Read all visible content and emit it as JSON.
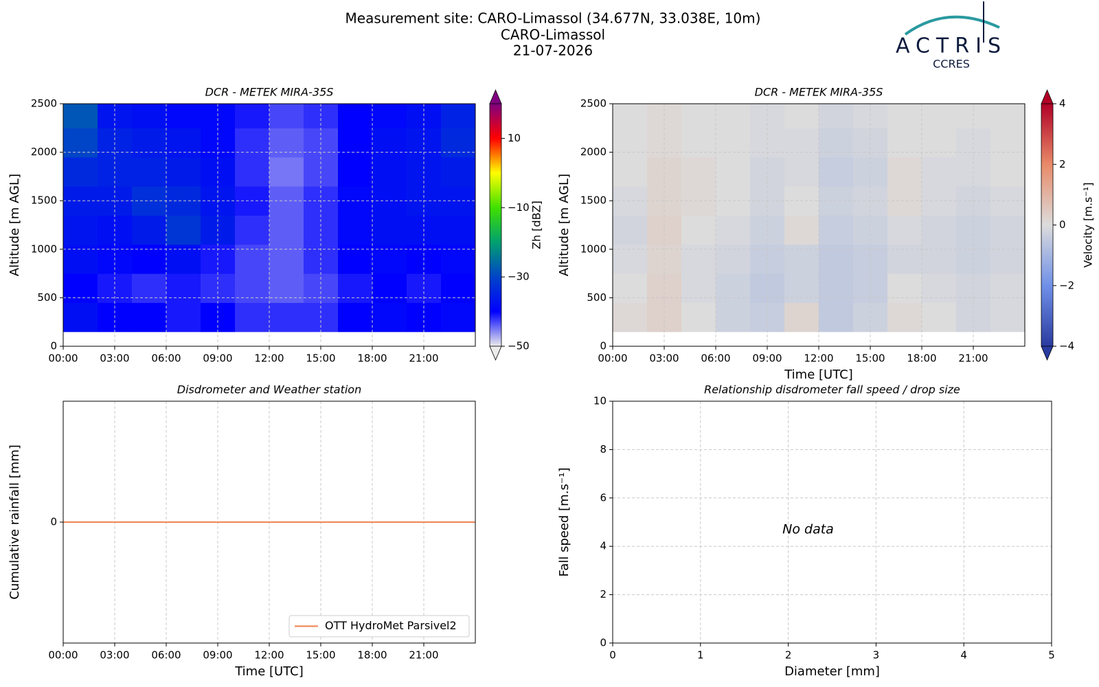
{
  "header": {
    "lines": [
      "Measurement site: CARO-Limassol (34.677N, 33.038E, 10m)",
      "CARO-Limassol",
      "21-07-2026"
    ],
    "logo": "ACTRIS",
    "logo_sub": "CCRES"
  },
  "chart_data": [
    {
      "type": "heatmap",
      "title": "DCR - METEK MIRA-35S",
      "ylabel": "Altitude [m AGL]",
      "colorbar_label": "Zh [dBZ]",
      "xlim": [
        0,
        24
      ],
      "ylim": [
        0,
        2500
      ],
      "zlim": [
        -50,
        20
      ],
      "xticks": [
        {
          "value": 0,
          "label": "00:00"
        },
        {
          "value": 3,
          "label": "03:00"
        },
        {
          "value": 6,
          "label": "06:00"
        },
        {
          "value": 9,
          "label": "09:00"
        },
        {
          "value": 12,
          "label": "12:00"
        },
        {
          "value": 15,
          "label": "15:00"
        },
        {
          "value": 18,
          "label": "18:00"
        },
        {
          "value": 21,
          "label": "21:00"
        }
      ],
      "yticks": [
        0,
        500,
        1000,
        1500,
        2000,
        2500
      ],
      "ztick": [
        {
          "value": -50,
          "label": "−50"
        },
        {
          "value": -30,
          "label": "−30"
        },
        {
          "value": -10,
          "label": "−10"
        },
        10
      ],
      "colormap": [
        "#ececec",
        "#0000ff",
        "#0044c8",
        "#00a070",
        "#40e000",
        "#ffff00",
        "#ff0000",
        "#800080"
      ],
      "grid": true,
      "x_bins": [
        0,
        2,
        4,
        6,
        8,
        10,
        12,
        14,
        16,
        18,
        20,
        22,
        24
      ],
      "y_bins": [
        150,
        450,
        750,
        1050,
        1350,
        1650,
        1950,
        2250,
        2500
      ],
      "z": [
        [
          -38,
          -40,
          -40,
          -41,
          -40,
          -42,
          -42,
          -42,
          -40,
          -39,
          -40,
          -39
        ],
        [
          -40,
          -41,
          -42,
          -41,
          -42,
          -43,
          -44,
          -43,
          -41,
          -40,
          -41,
          -40
        ],
        [
          -38,
          -39,
          -40,
          -38,
          -41,
          -43,
          -44,
          -42,
          -40,
          -39,
          -40,
          -39
        ],
        [
          -37,
          -38,
          -36,
          -32,
          -36,
          -42,
          -44,
          -42,
          -39,
          -38,
          -38,
          -38
        ],
        [
          -36,
          -36,
          -33,
          -34,
          -37,
          -41,
          -44,
          -42,
          -39,
          -38,
          -37,
          -37
        ],
        [
          -34,
          -35,
          -35,
          -36,
          -38,
          -42,
          -45,
          -43,
          -40,
          -38,
          -37,
          -36
        ],
        [
          -30,
          -35,
          -36,
          -37,
          -39,
          -42,
          -44,
          -43,
          -40,
          -38,
          -37,
          -34
        ],
        [
          -28,
          -37,
          -38,
          -39,
          -39,
          -41,
          -43,
          -42,
          -40,
          -39,
          -38,
          -35
        ]
      ]
    },
    {
      "type": "heatmap",
      "title": "DCR - METEK MIRA-35S",
      "ylabel": "Altitude [m AGL]",
      "xlabel": "Time [UTC]",
      "colorbar_label": "Velocity [m.s⁻¹]",
      "xlim": [
        0,
        24
      ],
      "ylim": [
        0,
        2500
      ],
      "zlim": [
        -4,
        4
      ],
      "xticks": [
        {
          "value": 0,
          "label": "00:00"
        },
        {
          "value": 3,
          "label": "03:00"
        },
        {
          "value": 6,
          "label": "06:00"
        },
        {
          "value": 9,
          "label": "09:00"
        },
        {
          "value": 12,
          "label": "12:00"
        },
        {
          "value": 15,
          "label": "15:00"
        },
        {
          "value": 18,
          "label": "18:00"
        },
        {
          "value": 21,
          "label": "21:00"
        }
      ],
      "yticks": [
        0,
        500,
        1000,
        1500,
        2000,
        2500
      ],
      "ztick": [
        {
          "value": -4,
          "label": "−4"
        },
        {
          "value": -2,
          "label": "−2"
        },
        0,
        2,
        4
      ],
      "colormap": [
        "#2a3ba0",
        "#7090e8",
        "#dcdcdc",
        "#e88a68",
        "#b00026"
      ],
      "grid": true,
      "x_bins": [
        0,
        2,
        4,
        6,
        8,
        10,
        12,
        14,
        16,
        18,
        20,
        22,
        24
      ],
      "y_bins": [
        150,
        450,
        750,
        1050,
        1350,
        1650,
        1950,
        2250,
        2500
      ],
      "z": [
        [
          0.1,
          0.3,
          0.0,
          -0.3,
          -0.4,
          0.2,
          -0.5,
          -0.3,
          0.1,
          0.0,
          -0.2,
          -0.1
        ],
        [
          0.0,
          0.3,
          -0.1,
          -0.3,
          -0.5,
          -0.3,
          -0.5,
          -0.4,
          0.0,
          -0.1,
          -0.2,
          -0.1
        ],
        [
          -0.1,
          0.2,
          -0.1,
          -0.2,
          -0.4,
          -0.3,
          -0.5,
          -0.4,
          -0.2,
          -0.2,
          -0.3,
          -0.2
        ],
        [
          -0.2,
          0.3,
          0.0,
          -0.1,
          -0.3,
          0.1,
          -0.4,
          -0.3,
          -0.1,
          -0.2,
          -0.3,
          -0.2
        ],
        [
          -0.1,
          0.2,
          0.1,
          0.0,
          -0.2,
          0.0,
          -0.3,
          -0.2,
          0.1,
          -0.1,
          -0.2,
          -0.1
        ],
        [
          0.0,
          0.2,
          0.1,
          0.0,
          -0.2,
          -0.1,
          -0.4,
          -0.3,
          0.1,
          -0.1,
          -0.1,
          0.0
        ],
        [
          0.0,
          0.1,
          0.0,
          0.0,
          -0.1,
          -0.1,
          -0.3,
          -0.2,
          0.0,
          0.0,
          -0.1,
          0.0
        ],
        [
          0.0,
          0.1,
          0.0,
          0.0,
          -0.1,
          0.0,
          -0.2,
          -0.1,
          0.0,
          0.0,
          0.0,
          0.0
        ]
      ]
    },
    {
      "type": "line",
      "title": "Disdrometer and Weather station",
      "ylabel": "Cumulative rainfall [mm]",
      "xlabel": "Time [UTC]",
      "xlim": [
        0,
        24
      ],
      "ylim": [
        -0.05,
        0.05
      ],
      "xticks": [
        {
          "value": 0,
          "label": "00:00"
        },
        {
          "value": 3,
          "label": "03:00"
        },
        {
          "value": 6,
          "label": "06:00"
        },
        {
          "value": 9,
          "label": "09:00"
        },
        {
          "value": 12,
          "label": "12:00"
        },
        {
          "value": 15,
          "label": "15:00"
        },
        {
          "value": 18,
          "label": "18:00"
        },
        {
          "value": 21,
          "label": "21:00"
        }
      ],
      "yticks": [
        0
      ],
      "grid": true,
      "legend": "lower right",
      "x": [
        0,
        24
      ],
      "series": [
        {
          "name": "OTT HydroMet Parsivel2",
          "color": "#f08a5d",
          "values": [
            0,
            0
          ]
        }
      ]
    },
    {
      "type": "scatter",
      "title": "Relationship disdrometer fall speed / drop size",
      "ylabel": "Fall speed [m.s⁻¹]",
      "xlabel": "Diameter [mm]",
      "annotation": "No data",
      "xlim": [
        0,
        5
      ],
      "ylim": [
        0,
        10
      ],
      "xticks": [
        0,
        1,
        2,
        3,
        4,
        5
      ],
      "yticks": [
        0,
        2,
        4,
        6,
        8,
        10
      ],
      "grid": true
    }
  ]
}
